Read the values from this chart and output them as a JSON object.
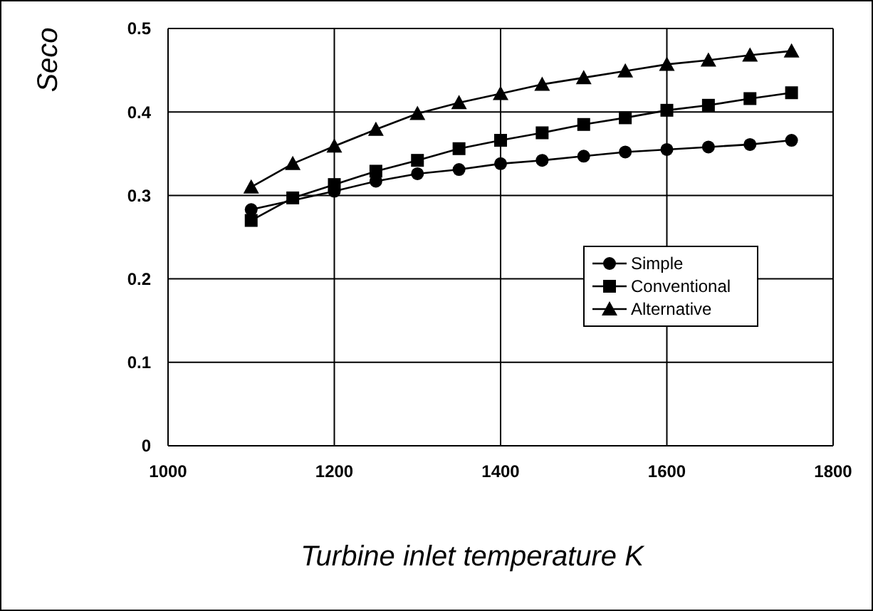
{
  "chart_data": {
    "type": "line",
    "xlabel": "Turbine inlet temperature K",
    "ylabel": "Seco",
    "x": [
      1100,
      1150,
      1200,
      1250,
      1300,
      1350,
      1400,
      1450,
      1500,
      1550,
      1600,
      1650,
      1700,
      1750
    ],
    "series": [
      {
        "name": "Simple",
        "color": "#000000",
        "marker": "circle",
        "values": [
          0.283,
          null,
          0.305,
          0.317,
          0.326,
          0.331,
          0.338,
          0.342,
          0.347,
          0.352,
          0.355,
          0.358,
          0.361,
          0.366
        ]
      },
      {
        "name": "Conventional",
        "color": "#000000",
        "marker": "square",
        "values": [
          0.27,
          0.297,
          0.313,
          0.329,
          0.342,
          0.356,
          0.366,
          0.375,
          0.385,
          0.393,
          0.402,
          0.408,
          0.416,
          0.423
        ]
      },
      {
        "name": "Alternative",
        "color": "#000000",
        "marker": "triangle",
        "values": [
          0.31,
          0.338,
          0.359,
          0.379,
          0.398,
          0.411,
          0.422,
          0.433,
          0.441,
          0.449,
          0.457,
          0.462,
          0.468,
          0.473
        ]
      }
    ],
    "xlim": [
      1000,
      1800
    ],
    "xticks": [
      1000,
      1200,
      1400,
      1600,
      1800
    ],
    "ylim": [
      0,
      0.5
    ],
    "yticks": [
      0,
      0.1,
      0.2,
      0.3,
      0.4,
      0.5
    ],
    "grid": true,
    "legend": "bottom right",
    "line_style": "solid"
  }
}
